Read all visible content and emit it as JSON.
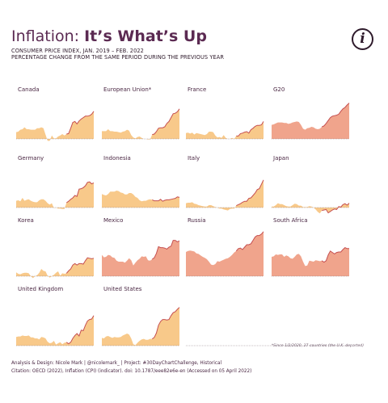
{
  "header": {
    "title_plain": "Inflation: ",
    "title_bold": "It’s What’s Up",
    "subtitle_line1": "CONSUMER PRICE INDEX, JAN. 2019 – FEB. 2022",
    "subtitle_line2": "PERCENTAGE CHANGE FROM THE SAME PERIOD DURING THE PREVIOUS YEAR",
    "info_glyph": "i"
  },
  "colors": {
    "light_fill": "#f8c98a",
    "dark_fill": "#f0a48c",
    "line": "#c54f50",
    "baseline": "#8a7a86",
    "label": "#4a2743"
  },
  "chart_data": {
    "type": "area",
    "period": "Jan. 2019 – Feb. 2022",
    "panels": [
      {
        "name": "Canada",
        "highlight": false,
        "values": [
          1.4,
          1.5,
          1.9,
          2.0,
          2.4,
          2.0,
          2.0,
          1.9,
          1.9,
          1.9,
          2.2,
          2.2,
          2.4,
          2.2,
          0.9,
          -0.4,
          -0.4,
          0.7,
          0.1,
          0.1,
          0.5,
          0.7,
          1.0,
          0.7,
          1.0,
          1.1,
          2.2,
          3.4,
          3.6,
          3.1,
          3.7,
          4.1,
          4.4,
          4.7,
          4.7,
          4.8,
          5.1,
          5.7
        ]
      },
      {
        "name": "European Union*",
        "highlight": false,
        "values": [
          1.6,
          1.6,
          1.6,
          2.0,
          1.6,
          1.6,
          1.5,
          1.5,
          1.4,
          1.3,
          1.5,
          1.6,
          1.9,
          1.7,
          0.8,
          0.3,
          0.1,
          0.4,
          0.5,
          0.2,
          0.0,
          0.0,
          -0.1,
          -0.1,
          0.9,
          1.0,
          1.5,
          2.2,
          2.3,
          2.3,
          2.5,
          3.2,
          3.6,
          4.4,
          5.2,
          5.3,
          5.6,
          6.2
        ]
      },
      {
        "name": "France",
        "highlight": false,
        "values": [
          1.2,
          1.3,
          1.1,
          1.3,
          0.9,
          1.2,
          1.1,
          1.0,
          0.9,
          0.8,
          1.0,
          1.5,
          1.5,
          1.4,
          0.7,
          0.3,
          0.4,
          0.2,
          0.8,
          0.2,
          0.0,
          0.0,
          0.2,
          0.0,
          0.6,
          0.6,
          1.1,
          1.2,
          1.4,
          1.5,
          1.2,
          1.9,
          2.2,
          2.6,
          2.8,
          2.8,
          2.9,
          3.6
        ]
      },
      {
        "name": "G20",
        "highlight": true,
        "values": [
          2.9,
          3.0,
          3.2,
          3.4,
          3.4,
          3.4,
          3.3,
          3.3,
          3.1,
          3.2,
          3.4,
          3.5,
          3.6,
          3.5,
          2.9,
          2.1,
          1.9,
          2.2,
          2.3,
          2.5,
          2.4,
          2.1,
          2.0,
          2.1,
          2.5,
          2.7,
          3.2,
          3.8,
          4.4,
          4.7,
          4.8,
          4.9,
          5.1,
          5.7,
          6.2,
          6.5,
          7.0,
          7.4
        ]
      },
      {
        "name": "Germany",
        "highlight": false,
        "values": [
          1.4,
          1.5,
          1.3,
          2.0,
          1.4,
          1.6,
          1.7,
          1.4,
          1.2,
          1.1,
          1.1,
          1.5,
          1.7,
          1.7,
          1.4,
          0.9,
          0.6,
          0.9,
          -0.1,
          0.0,
          -0.2,
          -0.2,
          -0.3,
          -0.3,
          1.0,
          1.3,
          1.7,
          2.0,
          2.5,
          2.3,
          3.8,
          3.9,
          4.1,
          4.5,
          5.2,
          5.3,
          4.9,
          5.1
        ]
      },
      {
        "name": "Indonesia",
        "highlight": false,
        "values": [
          2.8,
          2.6,
          2.5,
          2.8,
          3.3,
          3.3,
          3.3,
          3.5,
          3.4,
          3.1,
          3.0,
          2.7,
          2.7,
          3.0,
          3.0,
          2.7,
          2.2,
          2.0,
          1.5,
          1.3,
          1.4,
          1.4,
          1.6,
          1.7,
          1.6,
          1.4,
          1.4,
          1.4,
          1.7,
          1.3,
          1.5,
          1.6,
          1.6,
          1.7,
          1.8,
          1.9,
          2.2,
          2.1
        ]
      },
      {
        "name": "Italy",
        "highlight": false,
        "values": [
          0.9,
          1.0,
          1.0,
          1.1,
          0.8,
          0.7,
          0.5,
          0.4,
          0.3,
          0.2,
          0.2,
          0.5,
          0.5,
          0.3,
          0.1,
          0.0,
          -0.2,
          -0.2,
          -0.4,
          -0.5,
          -0.6,
          -0.3,
          -0.2,
          -0.2,
          0.4,
          0.6,
          0.8,
          1.1,
          1.3,
          1.3,
          1.9,
          2.0,
          2.5,
          3.0,
          3.7,
          3.9,
          4.8,
          5.7
        ]
      },
      {
        "name": "Japan",
        "highlight": false,
        "values": [
          0.2,
          0.2,
          0.5,
          0.9,
          0.7,
          0.7,
          0.5,
          0.3,
          0.2,
          0.2,
          0.5,
          0.8,
          0.7,
          0.4,
          0.4,
          0.1,
          0.1,
          0.1,
          0.3,
          0.2,
          0.0,
          -0.4,
          -0.9,
          -1.2,
          -0.6,
          -0.5,
          -0.4,
          -1.1,
          -0.8,
          -0.5,
          -0.3,
          -0.4,
          0.2,
          0.1,
          0.6,
          0.8,
          0.5,
          0.9
        ]
      },
      {
        "name": "Korea",
        "highlight": false,
        "values": [
          0.8,
          0.5,
          0.4,
          0.6,
          0.7,
          0.7,
          0.6,
          0.0,
          -0.4,
          0.0,
          0.2,
          0.7,
          1.5,
          1.1,
          1.0,
          0.1,
          -0.3,
          0.0,
          0.3,
          0.7,
          1.0,
          0.1,
          0.6,
          0.5,
          0.6,
          1.1,
          1.5,
          2.3,
          2.6,
          2.3,
          2.6,
          2.6,
          2.5,
          3.2,
          3.8,
          3.7,
          3.6,
          3.7
        ]
      },
      {
        "name": "Mexico",
        "highlight": true,
        "values": [
          4.4,
          3.9,
          4.0,
          4.4,
          4.3,
          3.9,
          3.8,
          3.2,
          3.0,
          3.0,
          3.0,
          2.8,
          3.2,
          3.7,
          3.3,
          2.2,
          2.8,
          3.3,
          3.6,
          4.1,
          4.0,
          4.1,
          3.3,
          3.2,
          3.5,
          3.8,
          4.7,
          6.1,
          5.9,
          5.9,
          5.8,
          5.6,
          6.0,
          6.2,
          7.4,
          7.4,
          7.1,
          7.3
        ]
      },
      {
        "name": "Russia",
        "highlight": true,
        "values": [
          5.0,
          5.2,
          5.3,
          5.2,
          5.1,
          4.7,
          4.6,
          4.3,
          4.0,
          3.8,
          3.5,
          3.0,
          2.4,
          2.3,
          2.5,
          3.1,
          3.0,
          3.2,
          3.4,
          3.6,
          3.7,
          4.0,
          4.4,
          4.9,
          5.2,
          5.7,
          5.8,
          5.5,
          6.0,
          6.5,
          6.5,
          6.7,
          7.4,
          8.1,
          8.4,
          8.4,
          8.7,
          9.2
        ]
      },
      {
        "name": "South Africa",
        "highlight": true,
        "values": [
          4.0,
          4.1,
          4.5,
          4.4,
          4.5,
          4.5,
          4.0,
          4.3,
          4.1,
          3.7,
          3.6,
          4.0,
          4.5,
          4.6,
          4.1,
          3.0,
          2.1,
          2.2,
          3.2,
          3.1,
          3.0,
          3.3,
          3.2,
          3.1,
          3.2,
          2.9,
          3.2,
          4.4,
          5.2,
          4.9,
          4.6,
          4.9,
          5.0,
          5.0,
          5.5,
          5.9,
          5.7,
          5.7
        ]
      },
      {
        "name": "United Kingdom",
        "highlight": false,
        "values": [
          1.8,
          1.9,
          1.9,
          2.1,
          2.0,
          2.0,
          2.1,
          1.7,
          1.7,
          1.5,
          1.5,
          1.3,
          1.8,
          1.7,
          1.5,
          0.8,
          0.5,
          0.6,
          1.0,
          0.2,
          0.5,
          0.7,
          0.3,
          0.6,
          0.7,
          0.4,
          0.7,
          1.5,
          2.1,
          2.5,
          2.0,
          3.2,
          3.1,
          4.2,
          5.1,
          5.4,
          5.5,
          6.2
        ]
      },
      {
        "name": "United States",
        "highlight": false,
        "values": [
          1.6,
          1.5,
          1.9,
          2.0,
          1.8,
          1.6,
          1.8,
          1.7,
          1.7,
          1.8,
          2.1,
          2.3,
          2.5,
          2.3,
          1.5,
          0.3,
          0.1,
          0.6,
          1.0,
          1.3,
          1.4,
          1.2,
          1.2,
          1.4,
          1.4,
          1.7,
          2.6,
          4.2,
          5.0,
          5.4,
          5.4,
          5.3,
          5.4,
          6.2,
          6.8,
          7.0,
          7.5,
          7.9
        ]
      }
    ]
  },
  "footnote": "*Since 1/2/2020, 27 countries (the U.K. departed)",
  "footer": {
    "line1": "Analysis & Design: Nicole Mark | @nicolemark_ | Project: #30DayChartChallenge, Historical",
    "line2": "Citation: OECD (2022), Inflation (CPI) (indicator). doi: 10.1787/eee82e6e-en (Accessed on 05 April 2022)"
  }
}
